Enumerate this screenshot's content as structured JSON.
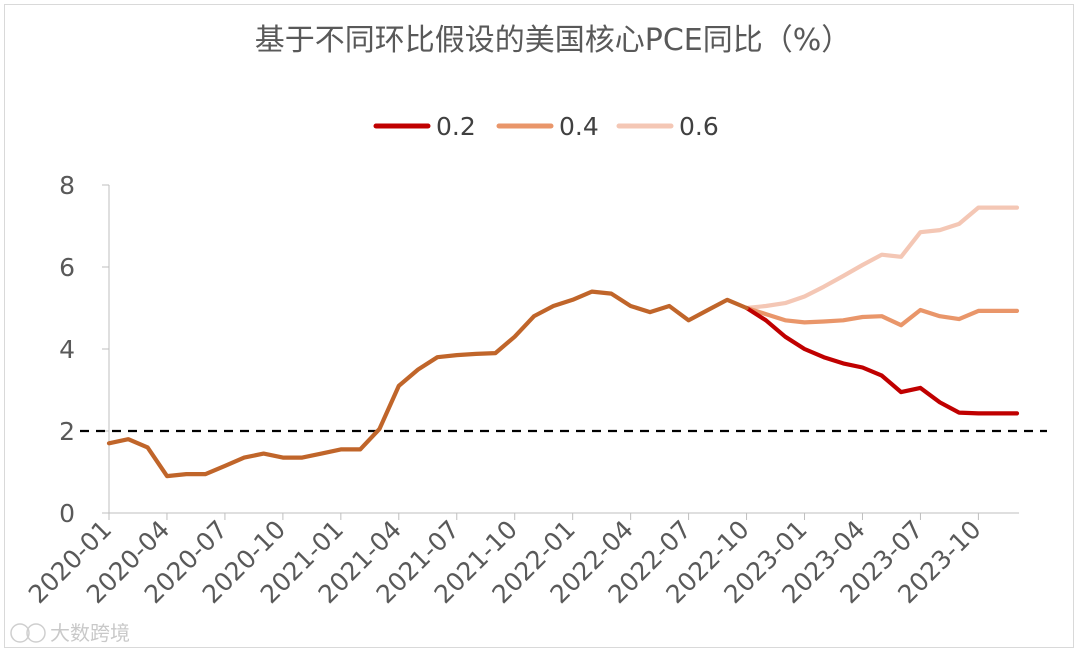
{
  "chart_data": {
    "type": "line",
    "title": "基于不同环比假设的美国核心PCE同比（%）",
    "xlabel": "",
    "ylabel": "",
    "ylim": [
      0,
      8
    ],
    "yticks": [
      "0",
      "2",
      "4",
      "6",
      "8"
    ],
    "xtick_labels": [
      "2020-01",
      "2020-04",
      "2020-07",
      "2020-10",
      "2021-01",
      "2021-04",
      "2021-07",
      "2021-10",
      "2022-01",
      "2022-04",
      "2022-07",
      "2022-10",
      "2023-01",
      "2023-04",
      "2023-07",
      "2023-10"
    ],
    "reference_line": {
      "value": 2,
      "style": "dashed"
    },
    "historical": {
      "start": "2020-01",
      "color": "#c0652a",
      "values": [
        1.7,
        1.8,
        1.6,
        0.9,
        0.95,
        0.95,
        1.15,
        1.35,
        1.45,
        1.35,
        1.35,
        1.45,
        1.55,
        1.55,
        2.05,
        3.1,
        3.5,
        3.8,
        3.85,
        3.88,
        3.9,
        4.3,
        4.8,
        5.05,
        5.2,
        5.4,
        5.35,
        5.05,
        4.9,
        5.05,
        4.7,
        4.95,
        5.2,
        5.0
      ]
    },
    "series": [
      {
        "name": "0.2",
        "color": "#c00000",
        "start": "2022-10",
        "values": [
          5.0,
          4.7,
          4.3,
          4.0,
          3.8,
          3.65,
          3.55,
          3.35,
          2.95,
          3.05,
          2.7,
          2.45,
          2.43,
          2.43,
          2.43
        ]
      },
      {
        "name": "0.4",
        "color": "#e9966a",
        "start": "2022-10",
        "values": [
          5.0,
          4.85,
          4.7,
          4.65,
          4.67,
          4.7,
          4.78,
          4.8,
          4.58,
          4.95,
          4.8,
          4.73,
          4.93,
          4.93,
          4.93
        ]
      },
      {
        "name": "0.6",
        "color": "#f4c7b5",
        "start": "2022-10",
        "values": [
          5.0,
          5.05,
          5.12,
          5.28,
          5.52,
          5.78,
          6.05,
          6.3,
          6.25,
          6.85,
          6.9,
          7.05,
          7.45,
          7.45,
          7.45
        ]
      }
    ]
  },
  "watermark": "大数跨境"
}
